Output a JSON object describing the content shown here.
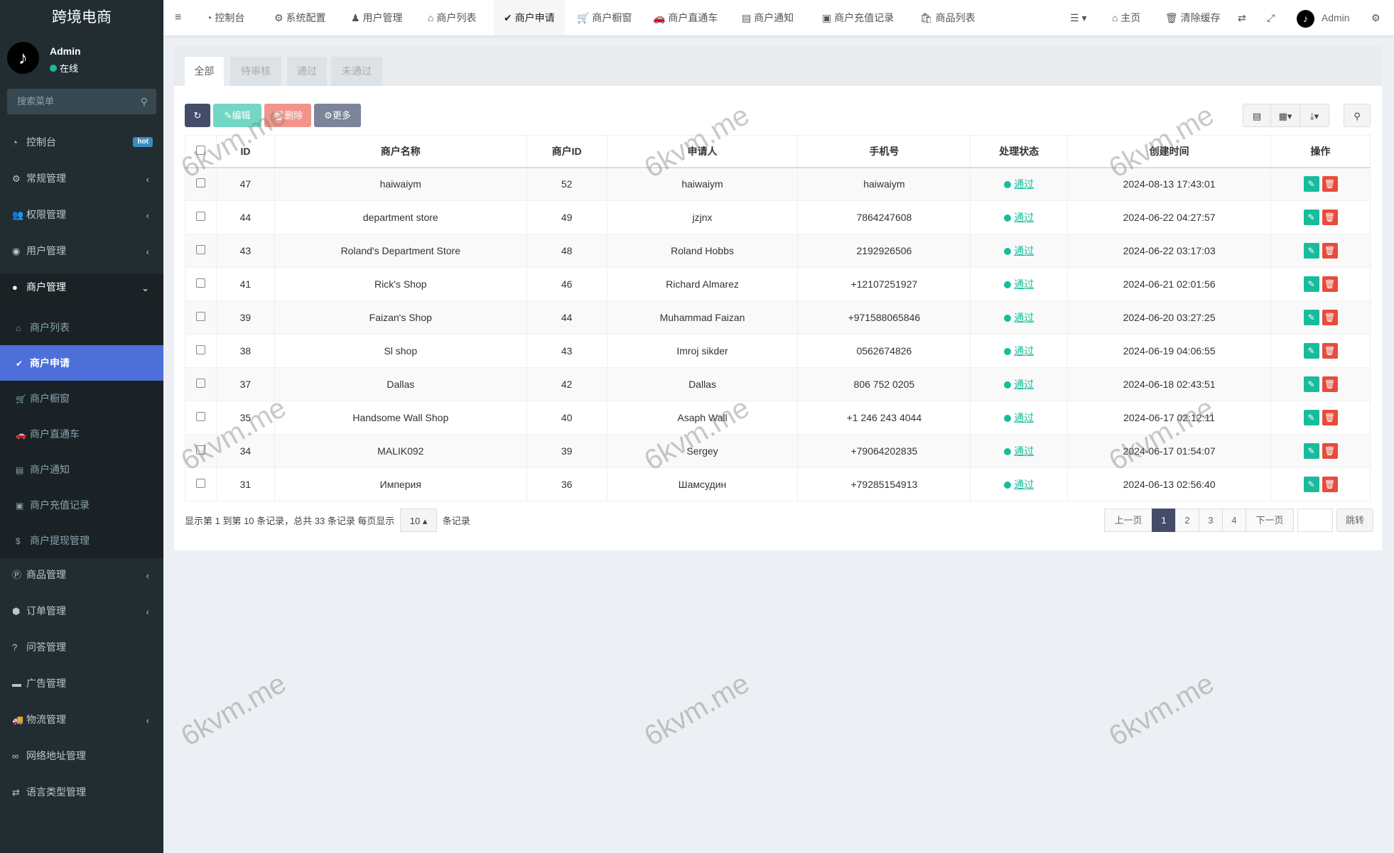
{
  "app_title": "跨境电商",
  "user": {
    "name": "Admin",
    "status": "在线"
  },
  "search": {
    "placeholder": "搜索菜单"
  },
  "sidebar": {
    "items": [
      {
        "icon": "dashboard-icon",
        "label": "控制台",
        "badge": "hot"
      },
      {
        "icon": "cogs-icon",
        "label": "常规管理",
        "arrow": "‹"
      },
      {
        "icon": "users-icon",
        "label": "权限管理",
        "arrow": "‹"
      },
      {
        "icon": "user-circle-icon",
        "label": "用户管理",
        "arrow": "‹"
      },
      {
        "icon": "apple-icon",
        "label": "商户管理",
        "arrow": "⌄"
      }
    ],
    "sub_items": [
      {
        "icon": "home-icon",
        "label": "商户列表"
      },
      {
        "icon": "check-circle-icon",
        "label": "商户申请"
      },
      {
        "icon": "cart-icon",
        "label": "商户橱窗"
      },
      {
        "icon": "car-icon",
        "label": "商户直通车"
      },
      {
        "icon": "list-alt-icon",
        "label": "商户通知"
      },
      {
        "icon": "money-icon",
        "label": "商户充值记录"
      },
      {
        "icon": "dollar-icon",
        "label": "商户提现管理"
      }
    ],
    "items2": [
      {
        "icon": "product-icon",
        "label": "商品管理",
        "arrow": "‹"
      },
      {
        "icon": "cube-icon",
        "label": "订单管理",
        "arrow": "‹"
      },
      {
        "icon": "question-icon",
        "label": "问答管理"
      },
      {
        "icon": "ad-icon",
        "label": "广告管理"
      },
      {
        "icon": "truck-icon",
        "label": "物流管理",
        "arrow": "‹"
      },
      {
        "icon": "link-icon",
        "label": "网络地址管理"
      },
      {
        "icon": "language-icon",
        "label": "语言类型管理"
      }
    ]
  },
  "topnav": {
    "tabs": [
      {
        "icon": "dashboard-icon",
        "label": "控制台"
      },
      {
        "icon": "gear-icon",
        "label": "系统配置"
      },
      {
        "icon": "user-icon",
        "label": "用户管理"
      },
      {
        "icon": "home-icon",
        "label": "商户列表"
      },
      {
        "icon": "check-circle-icon",
        "label": "商户申请"
      },
      {
        "icon": "cart-icon",
        "label": "商户橱窗"
      },
      {
        "icon": "car-icon",
        "label": "商户直通车"
      },
      {
        "icon": "list-alt-icon",
        "label": "商户通知"
      },
      {
        "icon": "money-icon",
        "label": "商户充值记录"
      },
      {
        "icon": "shopping-bag-icon",
        "label": "商品列表"
      }
    ],
    "home": "主页",
    "clear_cache": "清除缓存",
    "admin": "Admin"
  },
  "tabs": [
    "全部",
    "待审核",
    "通过",
    "未通过"
  ],
  "toolbar": {
    "edit": "编辑",
    "delete": "删除",
    "more": "更多"
  },
  "table": {
    "headers": [
      "ID",
      "商户名称",
      "商户ID",
      "申请人",
      "手机号",
      "处理状态",
      "创建时间",
      "操作"
    ],
    "rows": [
      [
        "47",
        "haiwaiym",
        "52",
        "haiwaiym",
        "haiwaiym",
        "通过",
        "2024-08-13 17:43:01"
      ],
      [
        "44",
        "department store",
        "49",
        "jzjnx",
        "7864247608",
        "通过",
        "2024-06-22 04:27:57"
      ],
      [
        "43",
        "Roland's Department Store",
        "48",
        "Roland Hobbs",
        "2192926506",
        "通过",
        "2024-06-22 03:17:03"
      ],
      [
        "41",
        "Rick's Shop",
        "46",
        "Richard Almarez",
        "+12107251927",
        "通过",
        "2024-06-21 02:01:56"
      ],
      [
        "39",
        "Faizan's Shop",
        "44",
        "Muhammad Faizan",
        "+971588065846",
        "通过",
        "2024-06-20 03:27:25"
      ],
      [
        "38",
        "Sl shop",
        "43",
        "Imroj sikder",
        "0562674826",
        "通过",
        "2024-06-19 04:06:55"
      ],
      [
        "37",
        "Dallas",
        "42",
        "Dallas",
        "806 752 0205",
        "通过",
        "2024-06-18 02:43:51"
      ],
      [
        "35",
        "Handsome Wall Shop",
        "40",
        "Asaph Wall",
        "+1 246 243 4044",
        "通过",
        "2024-06-17 02:12:11"
      ],
      [
        "34",
        "MALIK092",
        "39",
        "Sergey",
        "+79064202835",
        "通过",
        "2024-06-17 01:54:07"
      ],
      [
        "31",
        "Империя",
        "36",
        "Шамсудин",
        "+79285154913",
        "通过",
        "2024-06-13 02:56:40"
      ]
    ]
  },
  "footer": {
    "summary": "显示第 1 到第 10 条记录，总共 33 条记录 每页显示",
    "page_size": "10",
    "suffix": "条记录"
  },
  "pagination": {
    "prev": "上一页",
    "pages": [
      "1",
      "2",
      "3",
      "4"
    ],
    "current": "1",
    "next": "下一页",
    "jump": "跳转",
    "jump_value": ""
  },
  "watermark": "6kvm.me",
  "colors": {
    "sidebar": "#222d32",
    "active": "#4d6fd8",
    "success": "#18bc9c",
    "danger": "#e74c3c",
    "primary": "#444c69"
  }
}
